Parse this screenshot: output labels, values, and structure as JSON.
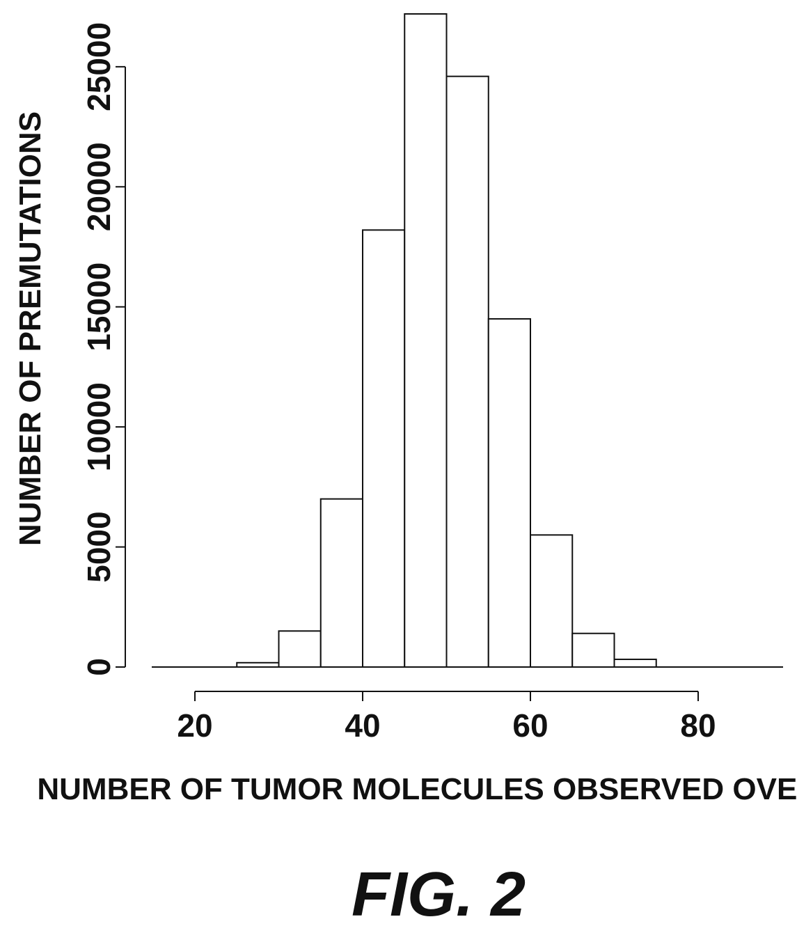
{
  "figure": {
    "caption": "FIG. 2"
  },
  "chart_data": {
    "type": "bar",
    "subtype": "histogram",
    "title": "",
    "xlabel": "NUMBER OF TUMOR MOLECULES OBSERVED OVERALL",
    "ylabel": "NUMBER OF PREMUTATIONS",
    "bin_width": 5,
    "bins": [
      {
        "x0": 20,
        "x1": 25,
        "count": 0
      },
      {
        "x0": 25,
        "x1": 30,
        "count": 180
      },
      {
        "x0": 30,
        "x1": 35,
        "count": 1500
      },
      {
        "x0": 35,
        "x1": 40,
        "count": 7000
      },
      {
        "x0": 40,
        "x1": 45,
        "count": 18200
      },
      {
        "x0": 45,
        "x1": 50,
        "count": 27200
      },
      {
        "x0": 50,
        "x1": 55,
        "count": 24600
      },
      {
        "x0": 55,
        "x1": 60,
        "count": 14500
      },
      {
        "x0": 60,
        "x1": 65,
        "count": 5500
      },
      {
        "x0": 65,
        "x1": 70,
        "count": 1400
      },
      {
        "x0": 70,
        "x1": 75,
        "count": 320
      },
      {
        "x0": 75,
        "x1": 80,
        "count": 0
      },
      {
        "x0": 80,
        "x1": 85,
        "count": 0
      },
      {
        "x0": 85,
        "x1": 90,
        "count": 0
      }
    ],
    "xlim": [
      15,
      90
    ],
    "ylim": [
      0,
      27200
    ],
    "x_ticks": [
      20,
      40,
      60,
      80
    ],
    "x_tick_labels": [
      "20",
      "40",
      "60",
      "80"
    ],
    "y_ticks": [
      0,
      5000,
      10000,
      15000,
      20000,
      25000
    ],
    "y_tick_labels": [
      "0",
      "5000",
      "10000",
      "15000",
      "20000",
      "25000"
    ],
    "grid": false,
    "legend": "none",
    "bar_fill": "#ffffff",
    "bar_stroke": "#111111"
  }
}
